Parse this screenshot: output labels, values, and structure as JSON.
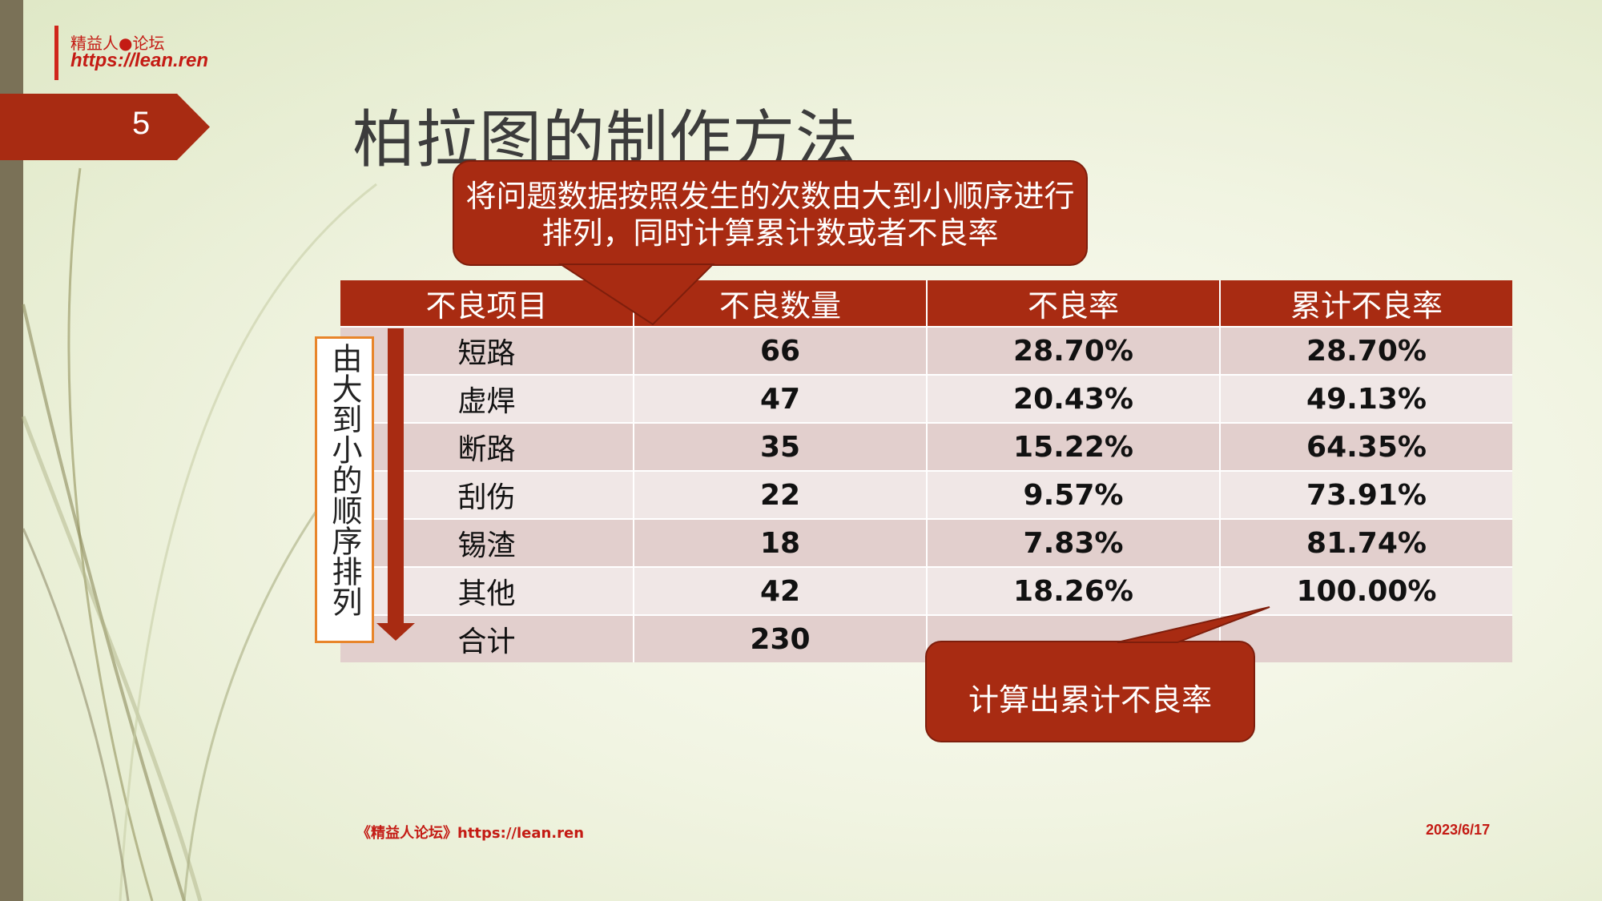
{
  "logo": {
    "title": "精益人●论坛",
    "url": "https://lean.ren"
  },
  "slide_number": "5",
  "title": "柏拉图的制作方法",
  "callout_top": {
    "line1": "将问题数据按照发生的次数由大到小顺序进行",
    "line2": "排列，同时计算累计数或者不良率"
  },
  "table": {
    "headers": [
      "不良项目",
      "不良数量",
      "不良率",
      "累计不良率"
    ],
    "rows": [
      [
        "短路",
        "66",
        "28.70%",
        "28.70%"
      ],
      [
        "虚焊",
        "47",
        "20.43%",
        "49.13%"
      ],
      [
        "断路",
        "35",
        "15.22%",
        "64.35%"
      ],
      [
        "刮伤",
        "22",
        "9.57%",
        "73.91%"
      ],
      [
        "锡渣",
        "18",
        "7.83%",
        "81.74%"
      ],
      [
        "其他",
        "42",
        "18.26%",
        "100.00%"
      ],
      [
        "合计",
        "230",
        "",
        ""
      ]
    ]
  },
  "vertical_label": "由大到小的顺序排列",
  "callout_bottom": "计算出累计不良率",
  "footer": {
    "left": "《精益人论坛》https://lean.ren",
    "right": "2023/6/17"
  },
  "colors": {
    "accent": "#a82b12",
    "logo_red": "#c41b14",
    "arrow_orange": "#e8852a"
  }
}
